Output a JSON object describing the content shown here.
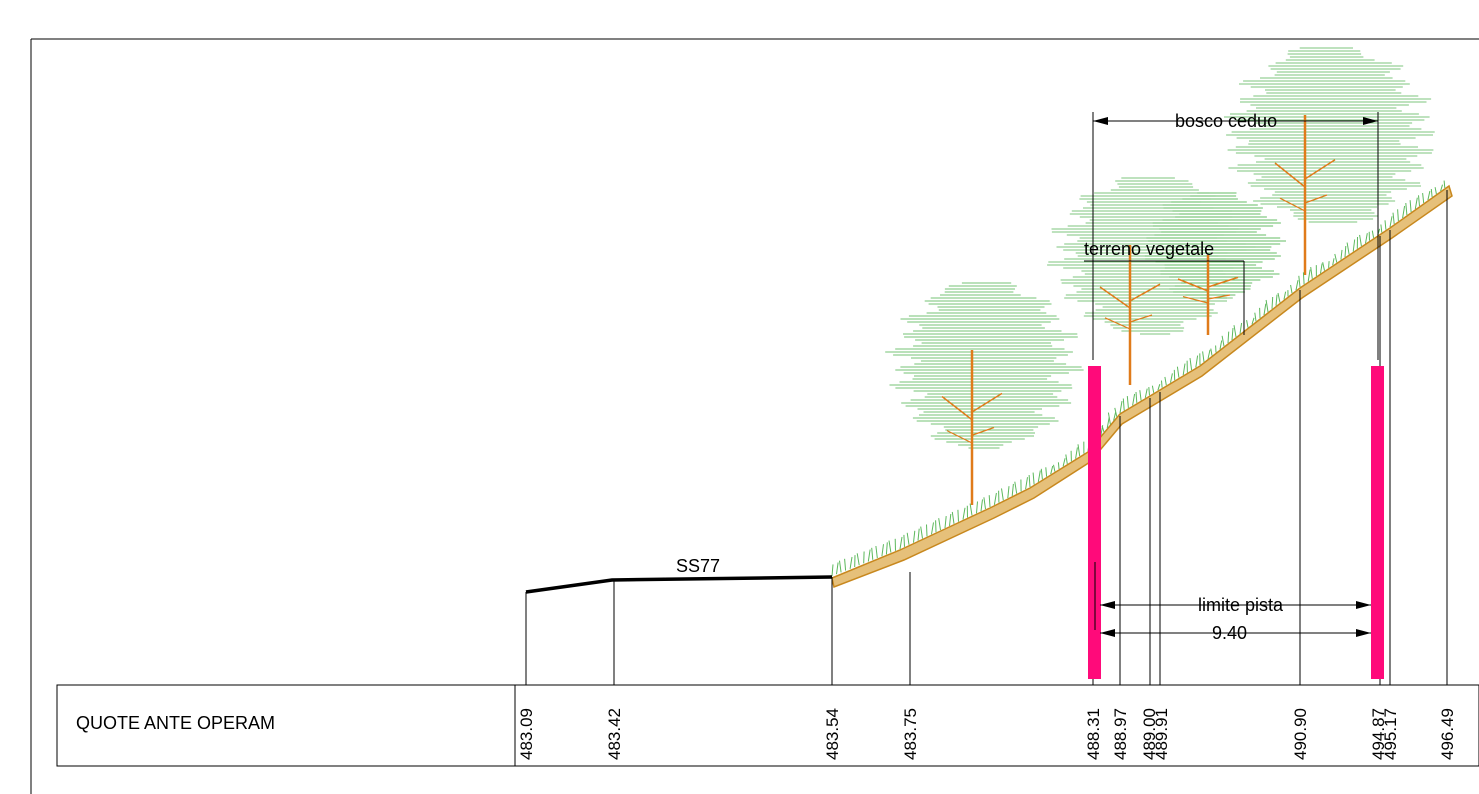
{
  "labels": {
    "road": "SS77",
    "woodland": "bosco ceduo",
    "topsoil": "terreno vegetale",
    "track_limit": "limite pista",
    "track_width": "9.40"
  },
  "table": {
    "row_title": "QUOTE ANTE OPERAM",
    "elevations": [
      "483.09",
      "483.42",
      "483.54",
      "483.75",
      "488.31",
      "488.97",
      "489.00",
      "489.91",
      "490.90",
      "494.87",
      "495.17",
      "496.49"
    ]
  },
  "colors": {
    "terrain_fill": "#e6c07a",
    "terrain_edge": "#c8881e",
    "vegetation": "#5cb85c",
    "trunk": "#e07b1a",
    "track_marker": "#ff0a7a",
    "line": "#000000"
  },
  "icons": [
    "tree-icon",
    "grass-icon"
  ]
}
